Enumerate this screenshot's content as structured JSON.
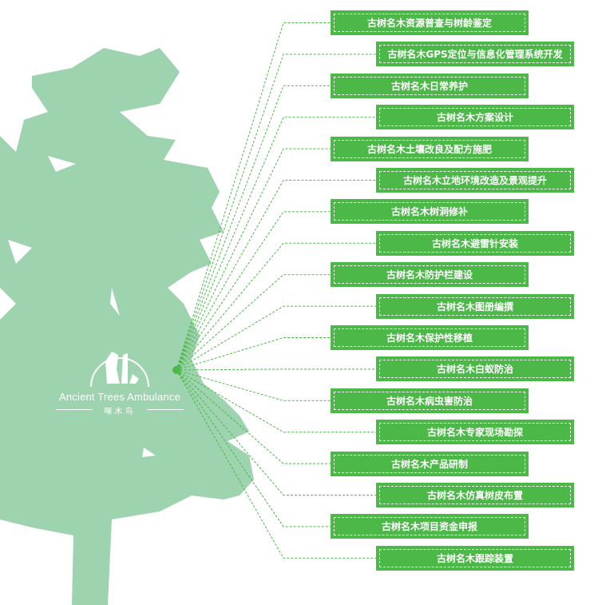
{
  "colors": {
    "tree": "#9dd3ae",
    "accent": "#4cb848",
    "line": "#4cb848",
    "text": "#ffffff"
  },
  "logo": {
    "english": "Ancient Trees Ambulance",
    "chinese": "啄木鸟",
    "icon": "woodpecker-on-tree-logo"
  },
  "items": [
    {
      "label": "古树名木资源普查与树龄鉴定",
      "column": "left"
    },
    {
      "label": "古树名木GPS定位与信息化管理系统开发",
      "column": "right"
    },
    {
      "label": "古树名木日常养护",
      "column": "left"
    },
    {
      "label": "古树名木方案设计",
      "column": "right"
    },
    {
      "label": "古树名木土壤改良及配方施肥",
      "column": "left"
    },
    {
      "label": "古树名木立地环境改造及景观提升",
      "column": "right"
    },
    {
      "label": "古树名木树洞修补",
      "column": "left"
    },
    {
      "label": "古树名木避雷针安装",
      "column": "right"
    },
    {
      "label": "古树名木防护栏建设",
      "column": "left"
    },
    {
      "label": "古树名木图册编撰",
      "column": "right"
    },
    {
      "label": "古树名木保护性移植",
      "column": "left"
    },
    {
      "label": "古树名木白蚁防治",
      "column": "right"
    },
    {
      "label": "古树名木病虫害防治",
      "column": "left"
    },
    {
      "label": "古树名木专家现场勘探",
      "column": "right"
    },
    {
      "label": "古树名木产品研制",
      "column": "left"
    },
    {
      "label": "古树名木仿真树皮布置",
      "column": "right"
    },
    {
      "label": "古树名木项目资金申报",
      "column": "left"
    },
    {
      "label": "古树名木跟踪装置",
      "column": "right"
    }
  ]
}
